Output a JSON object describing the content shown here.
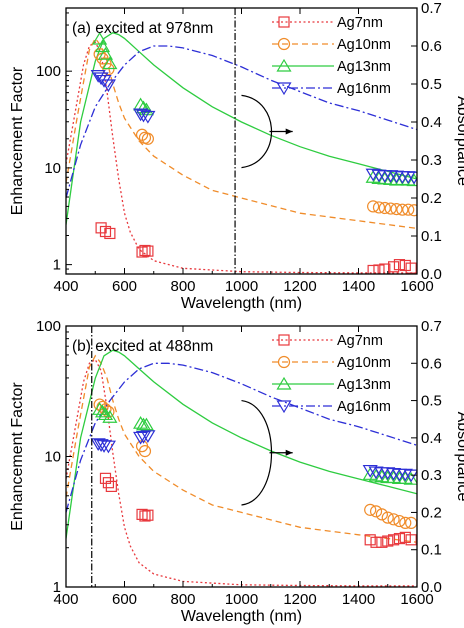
{
  "colors": {
    "Ag7nm": "#e8383d",
    "Ag10nm": "#f08c2a",
    "Ag13nm": "#2ecc40",
    "Ag16nm": "#2d2fd6",
    "axis": "#000000",
    "marker_line": "#000000"
  },
  "chart_data": [
    {
      "type": "line",
      "panel_label": "(a) excited at 978nm",
      "xlabel": "Wavelength (nm)",
      "ylabel_left": "Enhancement Factor",
      "ylabel_right": "Absorptance",
      "xlim": [
        400,
        1600
      ],
      "ylim_left": [
        0.8,
        450
      ],
      "yscale_left": "log",
      "ylim_right": [
        0,
        0.7
      ],
      "x_ticks": [
        400,
        600,
        800,
        1000,
        1200,
        1400,
        1600
      ],
      "y_left_ticks": [
        1,
        10,
        100
      ],
      "y_right_ticks": [
        0.0,
        0.1,
        0.2,
        0.3,
        0.4,
        0.5,
        0.6,
        0.7
      ],
      "excitation_line_x": 978,
      "arrow": "curved bracket pointing right toward absorptance axis",
      "legend_position": "top-right",
      "absorptance_series": [
        {
          "name": "Ag7nm",
          "style": "dotted",
          "x": [
            400,
            430,
            460,
            480,
            500,
            520,
            540,
            560,
            580,
            600,
            620,
            650,
            700,
            800,
            1000,
            1200,
            1400,
            1600
          ],
          "y": [
            0.29,
            0.42,
            0.55,
            0.6,
            0.61,
            0.58,
            0.48,
            0.36,
            0.25,
            0.16,
            0.11,
            0.065,
            0.035,
            0.015,
            0.006,
            0.004,
            0.003,
            0.003
          ]
        },
        {
          "name": "Ag10nm",
          "style": "dashed",
          "x": [
            400,
            440,
            480,
            500,
            520,
            540,
            560,
            580,
            600,
            650,
            700,
            800,
            900,
            1000,
            1100,
            1200,
            1300,
            1400,
            1500,
            1600
          ],
          "y": [
            0.24,
            0.42,
            0.59,
            0.62,
            0.6,
            0.56,
            0.5,
            0.45,
            0.41,
            0.35,
            0.31,
            0.26,
            0.22,
            0.2,
            0.18,
            0.16,
            0.15,
            0.14,
            0.13,
            0.12
          ]
        },
        {
          "name": "Ag13nm",
          "style": "solid",
          "x": [
            400,
            450,
            500,
            530,
            560,
            580,
            600,
            650,
            700,
            800,
            900,
            1000,
            1100,
            1200,
            1300,
            1400,
            1500,
            1600
          ],
          "y": [
            0.13,
            0.4,
            0.56,
            0.62,
            0.635,
            0.63,
            0.62,
            0.585,
            0.55,
            0.49,
            0.44,
            0.4,
            0.365,
            0.335,
            0.31,
            0.29,
            0.27,
            0.25
          ]
        },
        {
          "name": "Ag16nm",
          "style": "dashdot",
          "x": [
            400,
            450,
            500,
            550,
            600,
            650,
            700,
            750,
            800,
            900,
            1000,
            1100,
            1200,
            1300,
            1400,
            1500,
            1600
          ],
          "y": [
            0.2,
            0.34,
            0.44,
            0.5,
            0.55,
            0.585,
            0.6,
            0.6,
            0.595,
            0.575,
            0.545,
            0.51,
            0.48,
            0.45,
            0.43,
            0.405,
            0.38
          ]
        }
      ],
      "enhancement_series": [
        {
          "name": "Ag7nm",
          "marker": "square",
          "x": [
            520,
            535,
            550,
            660,
            670,
            680,
            1450,
            1470,
            1490,
            1520,
            1540,
            1560,
            1580
          ],
          "y": [
            2.4,
            2.2,
            2.1,
            1.35,
            1.4,
            1.38,
            0.87,
            0.88,
            0.9,
            0.95,
            1.0,
            0.98,
            0.92
          ]
        },
        {
          "name": "Ag10nm",
          "marker": "circle",
          "x": [
            515,
            525,
            535,
            545,
            660,
            670,
            680,
            1450,
            1470,
            1490,
            1510,
            1530,
            1550,
            1570,
            1590
          ],
          "y": [
            150,
            135,
            120,
            105,
            22,
            20.5,
            20,
            4.0,
            3.9,
            3.85,
            3.8,
            3.75,
            3.7,
            3.7,
            3.65
          ]
        },
        {
          "name": "Ag13nm",
          "marker": "triangle-up",
          "x": [
            515,
            525,
            535,
            550,
            655,
            665,
            675,
            1450,
            1470,
            1490,
            1510,
            1530,
            1550,
            1570,
            1590
          ],
          "y": [
            215,
            180,
            150,
            120,
            45,
            42,
            40,
            8.0,
            7.8,
            7.7,
            7.6,
            7.5,
            7.6,
            7.5,
            7.4
          ]
        },
        {
          "name": "Ag16nm",
          "marker": "triangle-down",
          "x": [
            510,
            520,
            530,
            545,
            655,
            665,
            680,
            1450,
            1470,
            1490,
            1510,
            1530,
            1550,
            1570,
            1590
          ],
          "y": [
            90,
            85,
            80,
            72,
            36,
            35,
            34,
            8.6,
            8.4,
            8.3,
            8.3,
            8.2,
            8.1,
            8.1,
            8.0
          ]
        }
      ]
    },
    {
      "type": "line",
      "panel_label": "(b) excited at 488nm",
      "xlabel": "Wavelength (nm)",
      "ylabel_left": "Enhancement Factor",
      "ylabel_right": "Absorptance",
      "xlim": [
        400,
        1600
      ],
      "ylim_left": [
        1,
        100
      ],
      "yscale_left": "log",
      "ylim_right": [
        0,
        0.7
      ],
      "x_ticks": [
        400,
        600,
        800,
        1000,
        1200,
        1400,
        1600
      ],
      "y_left_ticks": [
        1,
        10,
        100
      ],
      "y_right_ticks": [
        0.0,
        0.1,
        0.2,
        0.3,
        0.4,
        0.5,
        0.6,
        0.7
      ],
      "excitation_line_x": 488,
      "arrow": "curved bracket pointing right toward absorptance axis",
      "legend_position": "top-right",
      "absorptance_series": [
        {
          "name": "Ag7nm",
          "style": "dotted",
          "x": [
            400,
            430,
            460,
            480,
            500,
            520,
            540,
            560,
            580,
            600,
            620,
            650,
            700,
            800,
            1000,
            1200,
            1400,
            1600
          ],
          "y": [
            0.29,
            0.42,
            0.55,
            0.6,
            0.61,
            0.58,
            0.48,
            0.36,
            0.25,
            0.16,
            0.11,
            0.065,
            0.035,
            0.015,
            0.006,
            0.004,
            0.003,
            0.003
          ]
        },
        {
          "name": "Ag10nm",
          "style": "dashed",
          "x": [
            400,
            440,
            480,
            500,
            520,
            540,
            560,
            580,
            600,
            650,
            700,
            800,
            900,
            1000,
            1100,
            1200,
            1300,
            1400,
            1500,
            1600
          ],
          "y": [
            0.24,
            0.42,
            0.59,
            0.62,
            0.6,
            0.56,
            0.5,
            0.45,
            0.41,
            0.35,
            0.31,
            0.26,
            0.22,
            0.2,
            0.18,
            0.16,
            0.15,
            0.14,
            0.13,
            0.12
          ]
        },
        {
          "name": "Ag13nm",
          "style": "solid",
          "x": [
            400,
            450,
            500,
            530,
            560,
            580,
            600,
            650,
            700,
            800,
            900,
            1000,
            1100,
            1200,
            1300,
            1400,
            1500,
            1600
          ],
          "y": [
            0.13,
            0.4,
            0.56,
            0.62,
            0.635,
            0.63,
            0.62,
            0.585,
            0.55,
            0.49,
            0.44,
            0.4,
            0.365,
            0.335,
            0.31,
            0.29,
            0.27,
            0.25
          ]
        },
        {
          "name": "Ag16nm",
          "style": "dashdot",
          "x": [
            400,
            450,
            500,
            550,
            600,
            650,
            700,
            750,
            800,
            900,
            1000,
            1100,
            1200,
            1300,
            1400,
            1500,
            1600
          ],
          "y": [
            0.2,
            0.34,
            0.44,
            0.5,
            0.55,
            0.585,
            0.6,
            0.6,
            0.595,
            0.575,
            0.545,
            0.51,
            0.48,
            0.45,
            0.43,
            0.405,
            0.38
          ]
        }
      ],
      "enhancement_series": [
        {
          "name": "Ag7nm",
          "marker": "square",
          "x": [
            535,
            545,
            555,
            660,
            670,
            680,
            1440,
            1460,
            1480,
            1500,
            1520,
            1540,
            1560,
            1580
          ],
          "y": [
            6.8,
            6.3,
            5.9,
            3.6,
            3.5,
            3.55,
            2.3,
            2.2,
            2.2,
            2.25,
            2.3,
            2.35,
            2.4,
            2.3
          ]
        },
        {
          "name": "Ag10nm",
          "marker": "circle",
          "x": [
            515,
            525,
            535,
            545,
            660,
            670,
            1440,
            1460,
            1480,
            1500,
            1520,
            1540,
            1560,
            1580
          ],
          "y": [
            25,
            24,
            23,
            22,
            12,
            11,
            3.9,
            3.8,
            3.6,
            3.4,
            3.3,
            3.2,
            3.1,
            3.1
          ]
        },
        {
          "name": "Ag13nm",
          "marker": "triangle-up",
          "x": [
            515,
            525,
            535,
            550,
            655,
            665,
            675,
            1440,
            1460,
            1480,
            1500,
            1520,
            1540,
            1560,
            1580
          ],
          "y": [
            23,
            22,
            21,
            20,
            18,
            17.5,
            17.5,
            7.3,
            7.1,
            7.0,
            6.9,
            6.9,
            6.8,
            6.8,
            6.7
          ]
        },
        {
          "name": "Ag16nm",
          "marker": "triangle-down",
          "x": [
            510,
            520,
            530,
            545,
            655,
            665,
            680,
            1440,
            1460,
            1480,
            1500,
            1520,
            1540,
            1560,
            1580
          ],
          "y": [
            12.5,
            12.3,
            12.1,
            12.0,
            14.0,
            14.2,
            14.4,
            7.8,
            7.6,
            7.5,
            7.5,
            7.4,
            7.3,
            7.3,
            7.2
          ]
        }
      ]
    }
  ]
}
